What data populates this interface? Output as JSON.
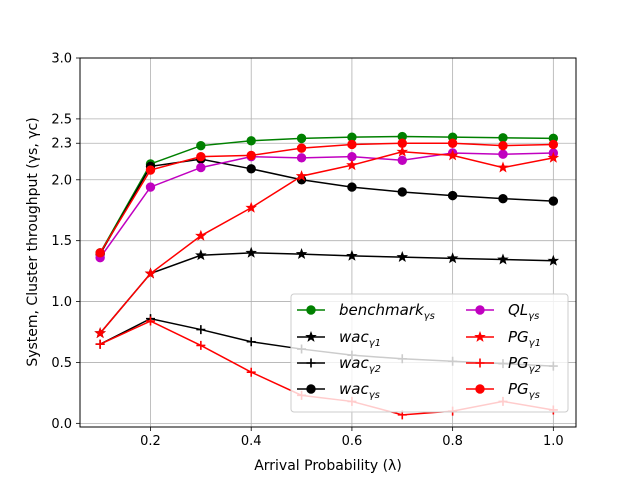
{
  "chart_data": {
    "type": "line",
    "title": "",
    "xlabel": "Arrival Probability (λ)",
    "ylabel": "System, Cluster throughput (γs, γc)",
    "xlim": [
      0.06,
      1.045
    ],
    "ylim": [
      -0.03,
      3.0
    ],
    "grid": true,
    "legend_position": "lower-center",
    "xticks": [
      0.2,
      0.4,
      0.6,
      0.8,
      1.0
    ],
    "xtick_labels": [
      "0.2",
      "0.4",
      "0.6",
      "0.8",
      "1.0"
    ],
    "yticks": [
      0.0,
      0.5,
      1.0,
      1.5,
      2.0,
      2.3,
      2.5,
      3.0
    ],
    "ytick_labels": [
      "0.0",
      "0.5",
      "1.0",
      "1.5",
      "2.0",
      "2.3",
      "2.5",
      "3.0"
    ],
    "x": [
      0.1,
      0.2,
      0.3,
      0.4,
      0.5,
      0.6,
      0.7,
      0.8,
      0.9,
      1.0
    ],
    "series": [
      {
        "name": "benchmark",
        "sub": "γs",
        "color": "#008000",
        "marker": "circle",
        "values": [
          1.4,
          2.13,
          2.28,
          2.32,
          2.34,
          2.35,
          2.355,
          2.35,
          2.345,
          2.34
        ]
      },
      {
        "name": "wac",
        "sub": "γ1",
        "color": "#000000",
        "marker": "star",
        "values": [
          0.74,
          1.23,
          1.38,
          1.4,
          1.39,
          1.375,
          1.365,
          1.355,
          1.345,
          1.335
        ]
      },
      {
        "name": "wac",
        "sub": "γ2",
        "color": "#000000",
        "marker": "plus",
        "values": [
          0.65,
          0.86,
          0.77,
          0.67,
          0.61,
          0.56,
          0.53,
          0.51,
          0.49,
          0.47
        ]
      },
      {
        "name": "wac",
        "sub": "γs",
        "color": "#000000",
        "marker": "circle",
        "values": [
          1.39,
          2.11,
          2.17,
          2.09,
          2.0,
          1.94,
          1.9,
          1.87,
          1.845,
          1.825
        ]
      },
      {
        "name": "QL",
        "sub": "γs",
        "color": "#c000c0",
        "marker": "circle",
        "values": [
          1.36,
          1.94,
          2.1,
          2.19,
          2.18,
          2.19,
          2.16,
          2.22,
          2.21,
          2.22
        ]
      },
      {
        "name": "PG",
        "sub": "γ1",
        "color": "#ff0000",
        "marker": "star",
        "values": [
          0.74,
          1.23,
          1.54,
          1.77,
          2.03,
          2.12,
          2.23,
          2.2,
          2.1,
          2.18
        ]
      },
      {
        "name": "PG",
        "sub": "γ2",
        "color": "#ff0000",
        "marker": "plus",
        "values": [
          0.65,
          0.84,
          0.64,
          0.42,
          0.23,
          0.18,
          0.07,
          0.1,
          0.18,
          0.11
        ]
      },
      {
        "name": "PG",
        "sub": "γs",
        "color": "#ff0000",
        "marker": "circle",
        "values": [
          1.4,
          2.08,
          2.19,
          2.2,
          2.26,
          2.29,
          2.3,
          2.3,
          2.28,
          2.29
        ]
      }
    ]
  }
}
